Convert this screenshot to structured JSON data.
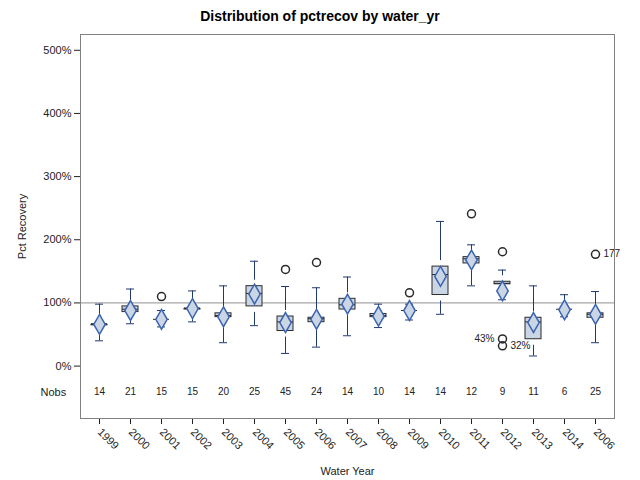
{
  "chart_data": {
    "type": "box",
    "title": "Distribution of pctrecov by water_yr",
    "x_label": "Water Year",
    "y_label": "Pct Recovery",
    "categories": [
      "1999",
      "2000",
      "2001",
      "2002",
      "2003",
      "2004",
      "2005",
      "2006",
      "2007",
      "2008",
      "2009",
      "2010",
      "2011",
      "2012",
      "2013",
      "2014",
      "2006"
    ],
    "whisker_low": [
      40,
      67,
      62,
      70,
      37,
      64,
      20,
      30,
      48,
      61,
      73,
      82,
      127,
      105,
      16,
      78,
      37
    ],
    "q1": [
      55,
      76,
      66,
      80,
      68,
      85,
      46,
      60,
      80,
      68,
      80,
      103,
      153,
      120,
      33,
      80,
      67
    ],
    "median": [
      67,
      90,
      74,
      92,
      80,
      115,
      70,
      75,
      97,
      80,
      88,
      145,
      170,
      131,
      70,
      90,
      82
    ],
    "q3": [
      75,
      104,
      82,
      100,
      93,
      136,
      88,
      86,
      116,
      92,
      95,
      167,
      182,
      143,
      86,
      96,
      93
    ],
    "whisker_high": [
      98,
      122,
      88,
      119,
      127,
      166,
      126,
      124,
      141,
      98,
      98,
      229,
      192,
      152,
      127,
      113,
      118
    ],
    "mean": [
      66,
      88,
      74,
      91,
      78,
      114,
      69,
      74,
      98,
      79,
      88,
      142,
      168,
      119,
      69,
      89,
      82
    ],
    "outliers": [
      [],
      [],
      [
        110
      ],
      [],
      [],
      [],
      [
        153
      ],
      [
        164
      ],
      [],
      [],
      [
        116
      ],
      [],
      [
        241
      ],
      [
        181,
        43,
        32
      ],
      [],
      [],
      [
        177
      ]
    ],
    "outlier_labels": [
      [],
      [],
      [
        null
      ],
      [],
      [],
      [],
      [
        null
      ],
      [
        null
      ],
      [],
      [],
      [
        null
      ],
      [],
      [
        null
      ],
      [
        null,
        "43%",
        "32%"
      ],
      [],
      [],
      [
        "177"
      ]
    ],
    "nobs": [
      14,
      21,
      15,
      15,
      20,
      25,
      45,
      24,
      14,
      10,
      14,
      14,
      12,
      9,
      11,
      6,
      25
    ],
    "nobs_label": "Nobs",
    "refline": 100,
    "ylim": [
      -83,
      525
    ],
    "yticks": [
      {
        "value": 0,
        "label": "0%"
      },
      {
        "value": 100,
        "label": "100%"
      },
      {
        "value": 200,
        "label": "200%"
      },
      {
        "value": 300,
        "label": "300%"
      },
      {
        "value": 400,
        "label": "400%"
      },
      {
        "value": 500,
        "label": "500%"
      }
    ]
  }
}
